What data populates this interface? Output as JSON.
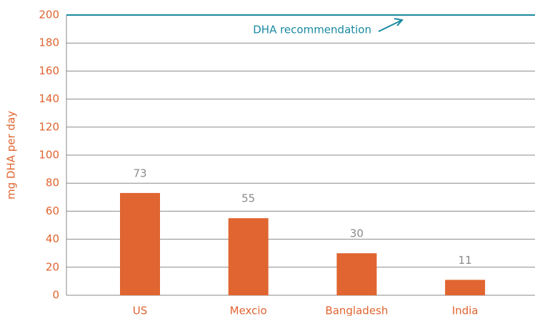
{
  "chart_data": {
    "type": "bar",
    "y_label": "mg DHA per day",
    "categories": [
      "US",
      "Mexcio",
      "Bangladesh",
      "India"
    ],
    "values": [
      73,
      55,
      30,
      11
    ],
    "color": "#e06530",
    "ylim": [
      0,
      200
    ],
    "yticks": [
      0,
      20,
      40,
      60,
      80,
      100,
      120,
      140,
      160,
      180,
      200
    ],
    "grid": true,
    "reference_line": {
      "value": 200,
      "label": "DHA recommendation",
      "color": "#1a8aa0"
    }
  }
}
